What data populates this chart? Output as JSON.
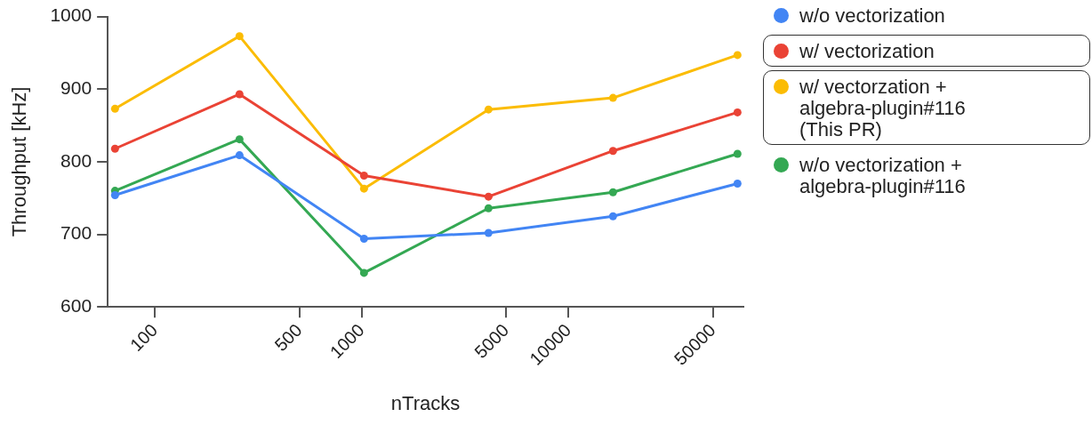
{
  "chart_data": {
    "type": "line",
    "xlabel": "nTracks",
    "ylabel": "Throughput [kHz]",
    "x": [
      64,
      256,
      1024,
      4096,
      16384,
      65536
    ],
    "log": "x",
    "xlim": [
      59,
      70000
    ],
    "xticks": [
      100,
      500,
      1000,
      5000,
      10000,
      50000
    ],
    "ylim": [
      600,
      1000
    ],
    "yticks": [
      600,
      700,
      800,
      900,
      1000
    ],
    "grid": false,
    "legend": "right",
    "marker": "circle",
    "line_style": "solid",
    "series": [
      {
        "name": "w/o vectorization",
        "color": "#4285f4",
        "values": [
          754,
          809,
          694,
          702,
          725,
          770
        ]
      },
      {
        "name": "w/ vectorization",
        "color": "#ea4335",
        "values": [
          818,
          893,
          781,
          752,
          815,
          868
        ]
      },
      {
        "name": "w/ vectorzation +\nalgebra-plugin#116\n(This PR)",
        "color": "#fbbc04",
        "values": [
          873,
          973,
          763,
          872,
          888,
          947
        ]
      },
      {
        "name": "w/o vectorization +\nalgebra-plugin#116",
        "color": "#34a853",
        "values": [
          760,
          831,
          647,
          736,
          758,
          811
        ]
      }
    ]
  }
}
